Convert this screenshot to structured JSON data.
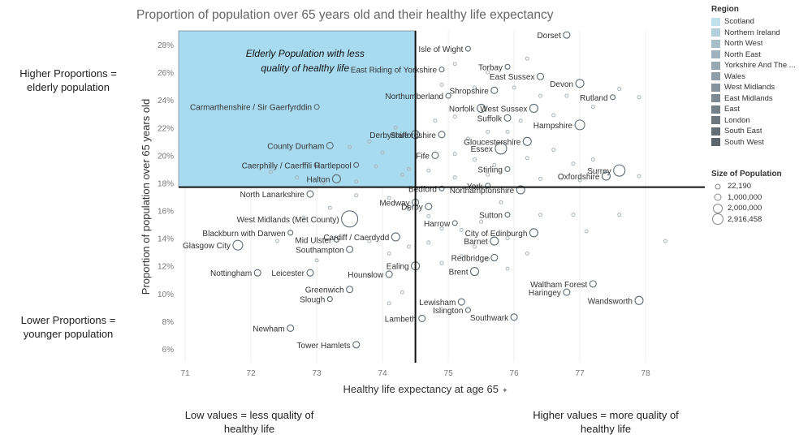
{
  "chart_data": {
    "type": "scatter",
    "title": "Proportion of population over 65 years old and their healthy life expectancy",
    "xlabel": "Healthy life expectancy at age 65",
    "xlabel_marker": "✦",
    "ylabel": "Proportion of population over 65 years old",
    "xlim": [
      70.9,
      78.9
    ],
    "ylim": [
      5,
      29
    ],
    "x_ticks": [
      71,
      72,
      73,
      74,
      75,
      76,
      77,
      78
    ],
    "y_ticks": [
      6,
      8,
      10,
      12,
      14,
      16,
      18,
      20,
      22,
      24,
      26,
      28
    ],
    "y_tick_suffix": "%",
    "reference_lines": {
      "x": 74.5,
      "y": 17.7
    },
    "highlight_box": {
      "x_range": [
        70.9,
        74.5
      ],
      "y_range": [
        17.7,
        29
      ],
      "label_line1": "Elderly Population with less",
      "label_line2": "quality of healthy life",
      "fill": "#a8dbef"
    },
    "labeled_points": [
      {
        "label": "Dorset",
        "x": 76.8,
        "y": 28.7,
        "size": 4
      },
      {
        "label": "Isle of Wight",
        "x": 75.3,
        "y": 27.7,
        "size": 3
      },
      {
        "label": "Torbay",
        "x": 75.9,
        "y": 26.4,
        "size": 3
      },
      {
        "label": "East Riding of Yorkshire",
        "x": 74.9,
        "y": 26.2,
        "size": 3
      },
      {
        "label": "East Sussex",
        "x": 76.4,
        "y": 25.7,
        "size": 4
      },
      {
        "label": "Devon",
        "x": 77.0,
        "y": 25.2,
        "size": 5
      },
      {
        "label": "Shropshire",
        "x": 75.7,
        "y": 24.7,
        "size": 4
      },
      {
        "label": "Rutland",
        "x": 77.5,
        "y": 24.2,
        "size": 3
      },
      {
        "label": "Northumberland",
        "x": 75.0,
        "y": 24.3,
        "size": 3
      },
      {
        "label": "Norfolk",
        "x": 75.5,
        "y": 23.4,
        "size": 5
      },
      {
        "label": "West Sussex",
        "x": 76.3,
        "y": 23.4,
        "size": 5
      },
      {
        "label": "Carmarthenshire / Sir Gaerfyrddin",
        "x": 73.0,
        "y": 23.5,
        "size": 3
      },
      {
        "label": "Suffolk",
        "x": 75.9,
        "y": 22.7,
        "size": 4
      },
      {
        "label": "Hampshire",
        "x": 77.0,
        "y": 22.2,
        "size": 6
      },
      {
        "label": "Derbyshire",
        "x": 74.5,
        "y": 21.5,
        "size": 5
      },
      {
        "label": "Staffordshire",
        "x": 74.9,
        "y": 21.5,
        "size": 4
      },
      {
        "label": "County Durham",
        "x": 73.2,
        "y": 20.7,
        "size": 4
      },
      {
        "label": "Gloucestershire",
        "x": 76.2,
        "y": 21.0,
        "size": 5
      },
      {
        "label": "Essex",
        "x": 75.8,
        "y": 20.5,
        "size": 7
      },
      {
        "label": "Surrey",
        "x": 77.6,
        "y": 18.9,
        "size": 7
      },
      {
        "label": "Fife",
        "x": 74.8,
        "y": 20.0,
        "size": 4
      },
      {
        "label": "Stirling",
        "x": 75.9,
        "y": 19.0,
        "size": 3
      },
      {
        "label": "Caerphilly / Caerffili",
        "x": 73.0,
        "y": 19.3,
        "size": 3
      },
      {
        "label": "Hartlepool",
        "x": 73.6,
        "y": 19.3,
        "size": 3
      },
      {
        "label": "Oxfordshire",
        "x": 77.4,
        "y": 18.5,
        "size": 5
      },
      {
        "label": "Halton",
        "x": 73.3,
        "y": 18.3,
        "size": 5
      },
      {
        "label": "Bedford",
        "x": 74.9,
        "y": 17.6,
        "size": 3
      },
      {
        "label": "York",
        "x": 75.6,
        "y": 17.8,
        "size": 3
      },
      {
        "label": "Northamptonshire",
        "x": 76.1,
        "y": 17.5,
        "size": 5
      },
      {
        "label": "North Lanarkshire",
        "x": 72.9,
        "y": 17.2,
        "size": 4
      },
      {
        "label": "Medway",
        "x": 74.5,
        "y": 16.6,
        "size": 4
      },
      {
        "label": "Derby",
        "x": 74.7,
        "y": 16.3,
        "size": 4
      },
      {
        "label": "Sutton",
        "x": 75.9,
        "y": 15.7,
        "size": 3
      },
      {
        "label": "West Midlands (Met County)",
        "x": 73.5,
        "y": 15.4,
        "size": 10
      },
      {
        "label": "Harrow",
        "x": 75.1,
        "y": 15.1,
        "size": 3
      },
      {
        "label": "Blackburn with Darwen",
        "x": 72.6,
        "y": 14.4,
        "size": 3
      },
      {
        "label": "City of Edinburgh",
        "x": 76.3,
        "y": 14.4,
        "size": 5
      },
      {
        "label": "Mid Ulster",
        "x": 73.3,
        "y": 13.9,
        "size": 3
      },
      {
        "label": "Barnet",
        "x": 75.7,
        "y": 13.8,
        "size": 5
      },
      {
        "label": "Cardiff / Caerdydd",
        "x": 74.2,
        "y": 14.1,
        "size": 5
      },
      {
        "label": "Southampton",
        "x": 73.5,
        "y": 13.2,
        "size": 4
      },
      {
        "label": "Glasgow City",
        "x": 71.8,
        "y": 13.5,
        "size": 6
      },
      {
        "label": "Redbridge",
        "x": 75.7,
        "y": 12.6,
        "size": 4
      },
      {
        "label": "Ealing",
        "x": 74.5,
        "y": 12.0,
        "size": 5
      },
      {
        "label": "Brent",
        "x": 75.4,
        "y": 11.6,
        "size": 5
      },
      {
        "label": "Nottingham",
        "x": 72.1,
        "y": 11.5,
        "size": 4
      },
      {
        "label": "Leicester",
        "x": 72.9,
        "y": 11.5,
        "size": 4
      },
      {
        "label": "Hounslow",
        "x": 74.1,
        "y": 11.4,
        "size": 4
      },
      {
        "label": "Waltham Forest",
        "x": 77.2,
        "y": 10.7,
        "size": 4
      },
      {
        "label": "Haringey",
        "x": 76.8,
        "y": 10.1,
        "size": 4
      },
      {
        "label": "Greenwich",
        "x": 73.5,
        "y": 10.3,
        "size": 4
      },
      {
        "label": "Slough",
        "x": 73.2,
        "y": 9.6,
        "size": 3
      },
      {
        "label": "Lewisham",
        "x": 75.2,
        "y": 9.4,
        "size": 4
      },
      {
        "label": "Wandsworth",
        "x": 77.9,
        "y": 9.5,
        "size": 5
      },
      {
        "label": "Islington",
        "x": 75.3,
        "y": 8.8,
        "size": 3
      },
      {
        "label": "Southwark",
        "x": 76.0,
        "y": 8.3,
        "size": 4
      },
      {
        "label": "Lambeth",
        "x": 74.6,
        "y": 8.2,
        "size": 4
      },
      {
        "label": "Newham",
        "x": 72.6,
        "y": 7.5,
        "size": 4
      },
      {
        "label": "Tower Hamlets",
        "x": 73.6,
        "y": 6.3,
        "size": 4
      }
    ],
    "unlabeled_points": [
      [
        74.0,
        20.2
      ],
      [
        73.8,
        21.0
      ],
      [
        74.2,
        22.0
      ],
      [
        74.8,
        22.5
      ],
      [
        75.1,
        22.8
      ],
      [
        75.3,
        21.2
      ],
      [
        75.6,
        21.7
      ],
      [
        75.9,
        21.7
      ],
      [
        76.1,
        22.5
      ],
      [
        76.6,
        22.9
      ],
      [
        76.4,
        24.3
      ],
      [
        76.8,
        24.3
      ],
      [
        77.2,
        23.5
      ],
      [
        77.6,
        24.8
      ],
      [
        77.9,
        24.2
      ],
      [
        76.0,
        24.9
      ],
      [
        76.2,
        27.0
      ],
      [
        75.6,
        26.0
      ],
      [
        75.1,
        26.6
      ],
      [
        74.9,
        25.1
      ],
      [
        75.4,
        24.9
      ],
      [
        75.1,
        20.1
      ],
      [
        75.4,
        19.7
      ],
      [
        75.7,
        19.3
      ],
      [
        76.2,
        19.8
      ],
      [
        76.6,
        20.4
      ],
      [
        76.9,
        19.4
      ],
      [
        77.2,
        19.7
      ],
      [
        77.9,
        18.5
      ],
      [
        77.0,
        18.2
      ],
      [
        76.4,
        18.3
      ],
      [
        75.6,
        18.6
      ],
      [
        75.1,
        18.4
      ],
      [
        74.7,
        18.9
      ],
      [
        74.3,
        18.6
      ],
      [
        73.9,
        19.2
      ],
      [
        73.6,
        18.1
      ],
      [
        73.1,
        18.0
      ],
      [
        72.7,
        18.4
      ],
      [
        72.3,
        18.8
      ],
      [
        74.4,
        19.0
      ],
      [
        73.5,
        20.6
      ],
      [
        74.1,
        16.9
      ],
      [
        74.4,
        16.1
      ],
      [
        74.7,
        15.6
      ],
      [
        74.9,
        14.7
      ],
      [
        75.2,
        14.6
      ],
      [
        75.5,
        15.2
      ],
      [
        75.8,
        16.6
      ],
      [
        76.4,
        15.7
      ],
      [
        76.9,
        15.7
      ],
      [
        77.6,
        15.7
      ],
      [
        78.3,
        13.8
      ],
      [
        77.1,
        14.5
      ],
      [
        75.9,
        14.0
      ],
      [
        75.4,
        13.4
      ],
      [
        75.2,
        12.7
      ],
      [
        74.9,
        12.2
      ],
      [
        74.1,
        12.9
      ],
      [
        73.8,
        13.8
      ],
      [
        74.4,
        13.4
      ],
      [
        74.7,
        13.7
      ],
      [
        75.6,
        12.5
      ],
      [
        74.3,
        10.1
      ],
      [
        74.1,
        9.3
      ],
      [
        73.2,
        16.2
      ],
      [
        72.8,
        15.5
      ],
      [
        73.6,
        17.1
      ],
      [
        73.0,
        12.4
      ],
      [
        73.8,
        11.3
      ],
      [
        75.9,
        11.8
      ],
      [
        76.2,
        12.9
      ],
      [
        72.4,
        13.8
      ]
    ],
    "legend_color": {
      "title": "Region",
      "items": [
        {
          "label": "Scotland",
          "color": "#bfe0ec"
        },
        {
          "label": "Northern Ireland",
          "color": "#b3cfdb"
        },
        {
          "label": "North West",
          "color": "#a8bfca"
        },
        {
          "label": "North East",
          "color": "#9fb3be"
        },
        {
          "label": "Yorkshire And The ...",
          "color": "#97a8b2"
        },
        {
          "label": "Wales",
          "color": "#8e9da7"
        },
        {
          "label": "West Midlands",
          "color": "#86939c"
        },
        {
          "label": "East Midlands",
          "color": "#7e8991"
        },
        {
          "label": "East",
          "color": "#768087"
        },
        {
          "label": "London",
          "color": "#6e777e"
        },
        {
          "label": "South East",
          "color": "#666e75"
        },
        {
          "label": "South West",
          "color": "#5e656b"
        }
      ]
    },
    "legend_size": {
      "title": "Size of Population",
      "items": [
        {
          "label": "22,190",
          "size": 3
        },
        {
          "label": "1,000,000",
          "size": 4
        },
        {
          "label": "2,000,000",
          "size": 5.5
        },
        {
          "label": "2,916,458",
          "size": 6.5
        }
      ]
    }
  },
  "annotations": {
    "higher_line1": "Higher Proportions =",
    "higher_line2": "elderly population",
    "lower_line1": "Lower Proportions =",
    "lower_line2": "younger population",
    "low_values_line1": "Low values = less quality of",
    "low_values_line2": "healthy life",
    "high_values_line1": "Higher values = more quality of",
    "high_values_line2": "healthy life"
  },
  "colors": {
    "axis_text": "#777777",
    "point_stroke": "#5f6b75",
    "reference_line": "#111111"
  }
}
